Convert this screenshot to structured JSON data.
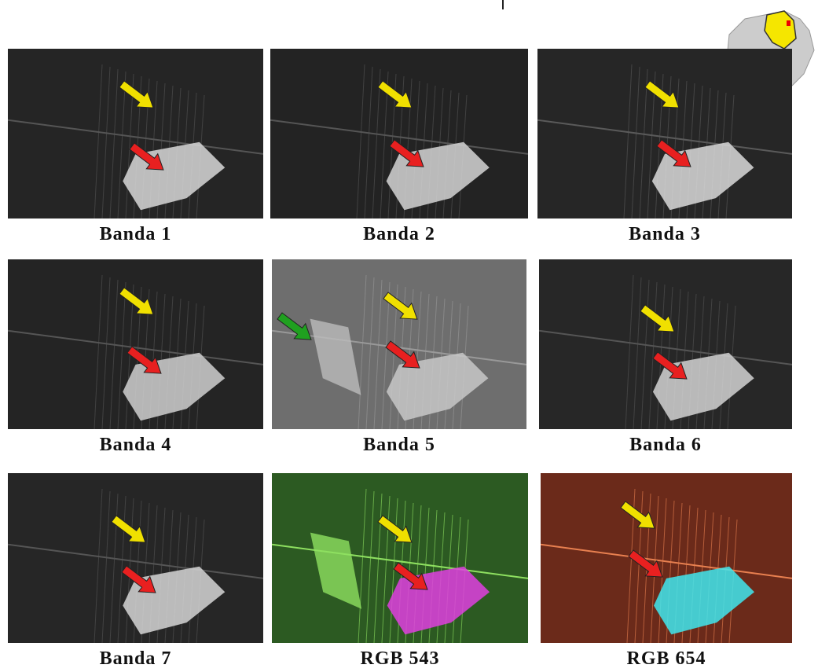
{
  "panels": [
    {
      "label": "Banda 1"
    },
    {
      "label": "Banda 2"
    },
    {
      "label": "Banda 3"
    },
    {
      "label": "Banda 4"
    },
    {
      "label": "Banda 5"
    },
    {
      "label": "Banda 6"
    },
    {
      "label": "Banda 7"
    },
    {
      "label": "RGB 543"
    },
    {
      "label": "RGB 654"
    }
  ]
}
